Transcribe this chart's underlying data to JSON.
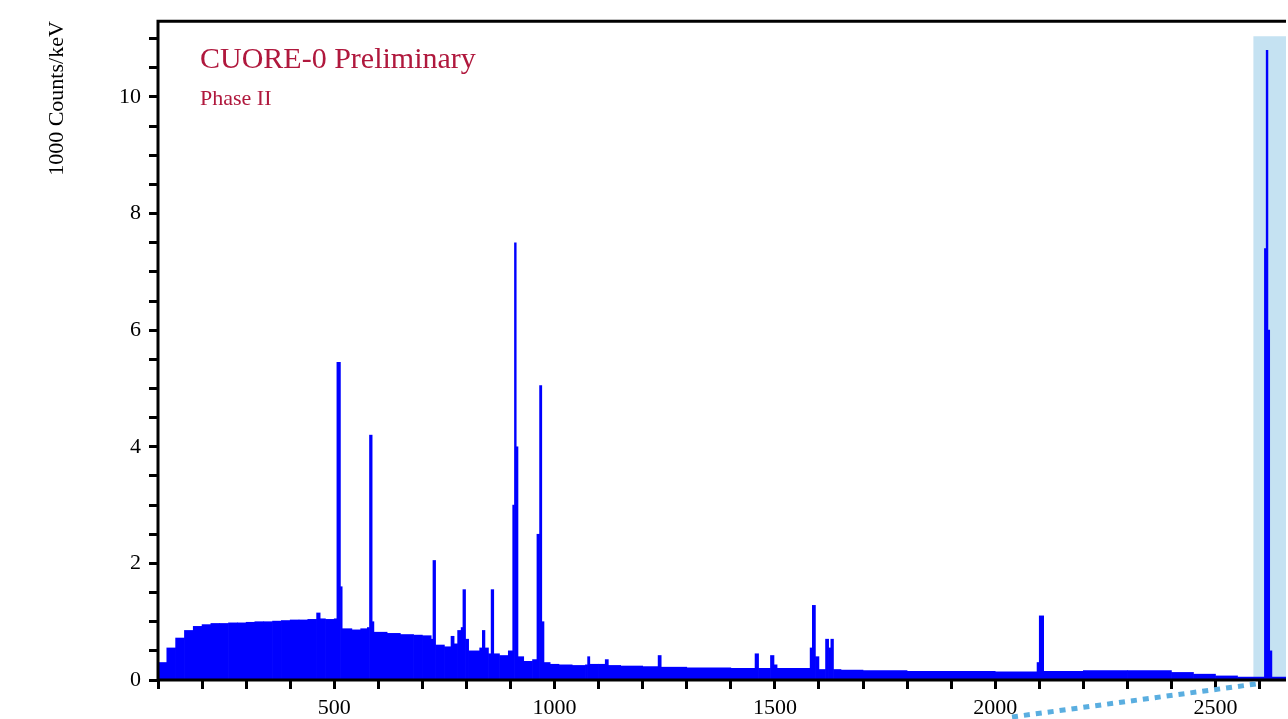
{
  "chart_data": {
    "type": "histogram",
    "title": "CUORE-0 Preliminary",
    "subtitle": "Phase II",
    "ylabel": "1000 Counts/keV",
    "bins": [
      100,
      120,
      140,
      160,
      180,
      200,
      220,
      240,
      260,
      280,
      300,
      320,
      340,
      360,
      380,
      400,
      420,
      440,
      460,
      468,
      480,
      500,
      506,
      514,
      518,
      540,
      560,
      575,
      580,
      586,
      590,
      620,
      650,
      680,
      700,
      720,
      724,
      730,
      750,
      765,
      772,
      780,
      788,
      792,
      798,
      805,
      830,
      836,
      842,
      850,
      856,
      862,
      875,
      895,
      905,
      909,
      913,
      917,
      930,
      950,
      960,
      966,
      971,
      976,
      990,
      1010,
      1040,
      1070,
      1075,
      1080,
      1100,
      1115,
      1122,
      1150,
      1200,
      1235,
      1242,
      1300,
      1400,
      1455,
      1463,
      1490,
      1498,
      1505,
      1550,
      1580,
      1585,
      1592,
      1600,
      1615,
      1622,
      1627,
      1633,
      1650,
      1700,
      1800,
      1900,
      2000,
      2095,
      2100,
      2110,
      2200,
      2300,
      2400,
      2450,
      2500,
      2550,
      2611,
      2615,
      2619,
      2623,
      2628,
      2660
    ],
    "values": [
      0.3,
      0.55,
      0.72,
      0.85,
      0.92,
      0.95,
      0.97,
      0.97,
      0.98,
      0.98,
      0.99,
      1.0,
      1.0,
      1.01,
      1.02,
      1.03,
      1.03,
      1.04,
      1.15,
      1.05,
      1.04,
      1.05,
      5.45,
      1.6,
      0.88,
      0.86,
      0.88,
      0.9,
      4.2,
      1.0,
      0.82,
      0.8,
      0.78,
      0.77,
      0.76,
      0.7,
      2.05,
      0.6,
      0.57,
      0.75,
      0.62,
      0.85,
      0.9,
      1.55,
      0.7,
      0.5,
      0.55,
      0.85,
      0.55,
      0.45,
      1.55,
      0.45,
      0.42,
      0.5,
      3.0,
      7.5,
      4.0,
      0.4,
      0.32,
      0.35,
      2.5,
      5.05,
      1.0,
      0.3,
      0.27,
      0.26,
      0.25,
      0.26,
      0.4,
      0.27,
      0.27,
      0.35,
      0.25,
      0.24,
      0.23,
      0.42,
      0.22,
      0.21,
      0.2,
      0.45,
      0.2,
      0.42,
      0.26,
      0.2,
      0.2,
      0.55,
      1.28,
      0.4,
      0.18,
      0.7,
      0.55,
      0.7,
      0.18,
      0.17,
      0.16,
      0.15,
      0.15,
      0.14,
      0.3,
      1.1,
      0.15,
      0.16,
      0.16,
      0.13,
      0.1,
      0.07,
      0.05,
      7.4,
      10.8,
      6.0,
      0.5,
      0.05
    ],
    "color": "#0000ff",
    "xlim": [
      100,
      2660
    ],
    "ylim": [
      0,
      11.3
    ],
    "xticks": [
      {
        "value": 100,
        "label": null
      },
      {
        "value": 200,
        "label": null
      },
      {
        "value": 300,
        "label": null
      },
      {
        "value": 400,
        "label": null
      },
      500,
      {
        "value": 600,
        "label": null
      },
      {
        "value": 700,
        "label": null
      },
      {
        "value": 800,
        "label": null
      },
      {
        "value": 900,
        "label": null
      },
      1000,
      {
        "value": 1100,
        "label": null
      },
      {
        "value": 1200,
        "label": null
      },
      {
        "value": 1300,
        "label": null
      },
      {
        "value": 1400,
        "label": null
      },
      1500,
      {
        "value": 1600,
        "label": null
      },
      {
        "value": 1700,
        "label": null
      },
      {
        "value": 1800,
        "label": null
      },
      {
        "value": 1900,
        "label": null
      },
      2000,
      {
        "value": 2100,
        "label": null
      },
      {
        "value": 2200,
        "label": null
      },
      {
        "value": 2300,
        "label": null
      },
      {
        "value": 2400,
        "label": null
      },
      2500,
      {
        "value": 2600,
        "label": null
      }
    ],
    "yticks": [
      0,
      {
        "value": 0.5,
        "label": null
      },
      {
        "value": 1,
        "label": null
      },
      {
        "value": 1.5,
        "label": null
      },
      2,
      {
        "value": 2.5,
        "label": null
      },
      {
        "value": 3,
        "label": null
      },
      {
        "value": 3.5,
        "label": null
      },
      4,
      {
        "value": 4.5,
        "label": null
      },
      {
        "value": 5,
        "label": null
      },
      {
        "value": 5.5,
        "label": null
      },
      6,
      {
        "value": 6.5,
        "label": null
      },
      {
        "value": 7,
        "label": null
      },
      {
        "value": 7.5,
        "label": null
      },
      8,
      {
        "value": 8.5,
        "label": null
      },
      {
        "value": 9,
        "label": null
      },
      {
        "value": 9.5,
        "label": null
      },
      10,
      {
        "value": 10.5,
        "label": null
      },
      {
        "value": 11,
        "label": null
      }
    ],
    "grid": false,
    "bands": [
      {
        "axis": "x",
        "from": 2586,
        "to": 2660,
        "color": "#c5e2f2"
      }
    ]
  }
}
